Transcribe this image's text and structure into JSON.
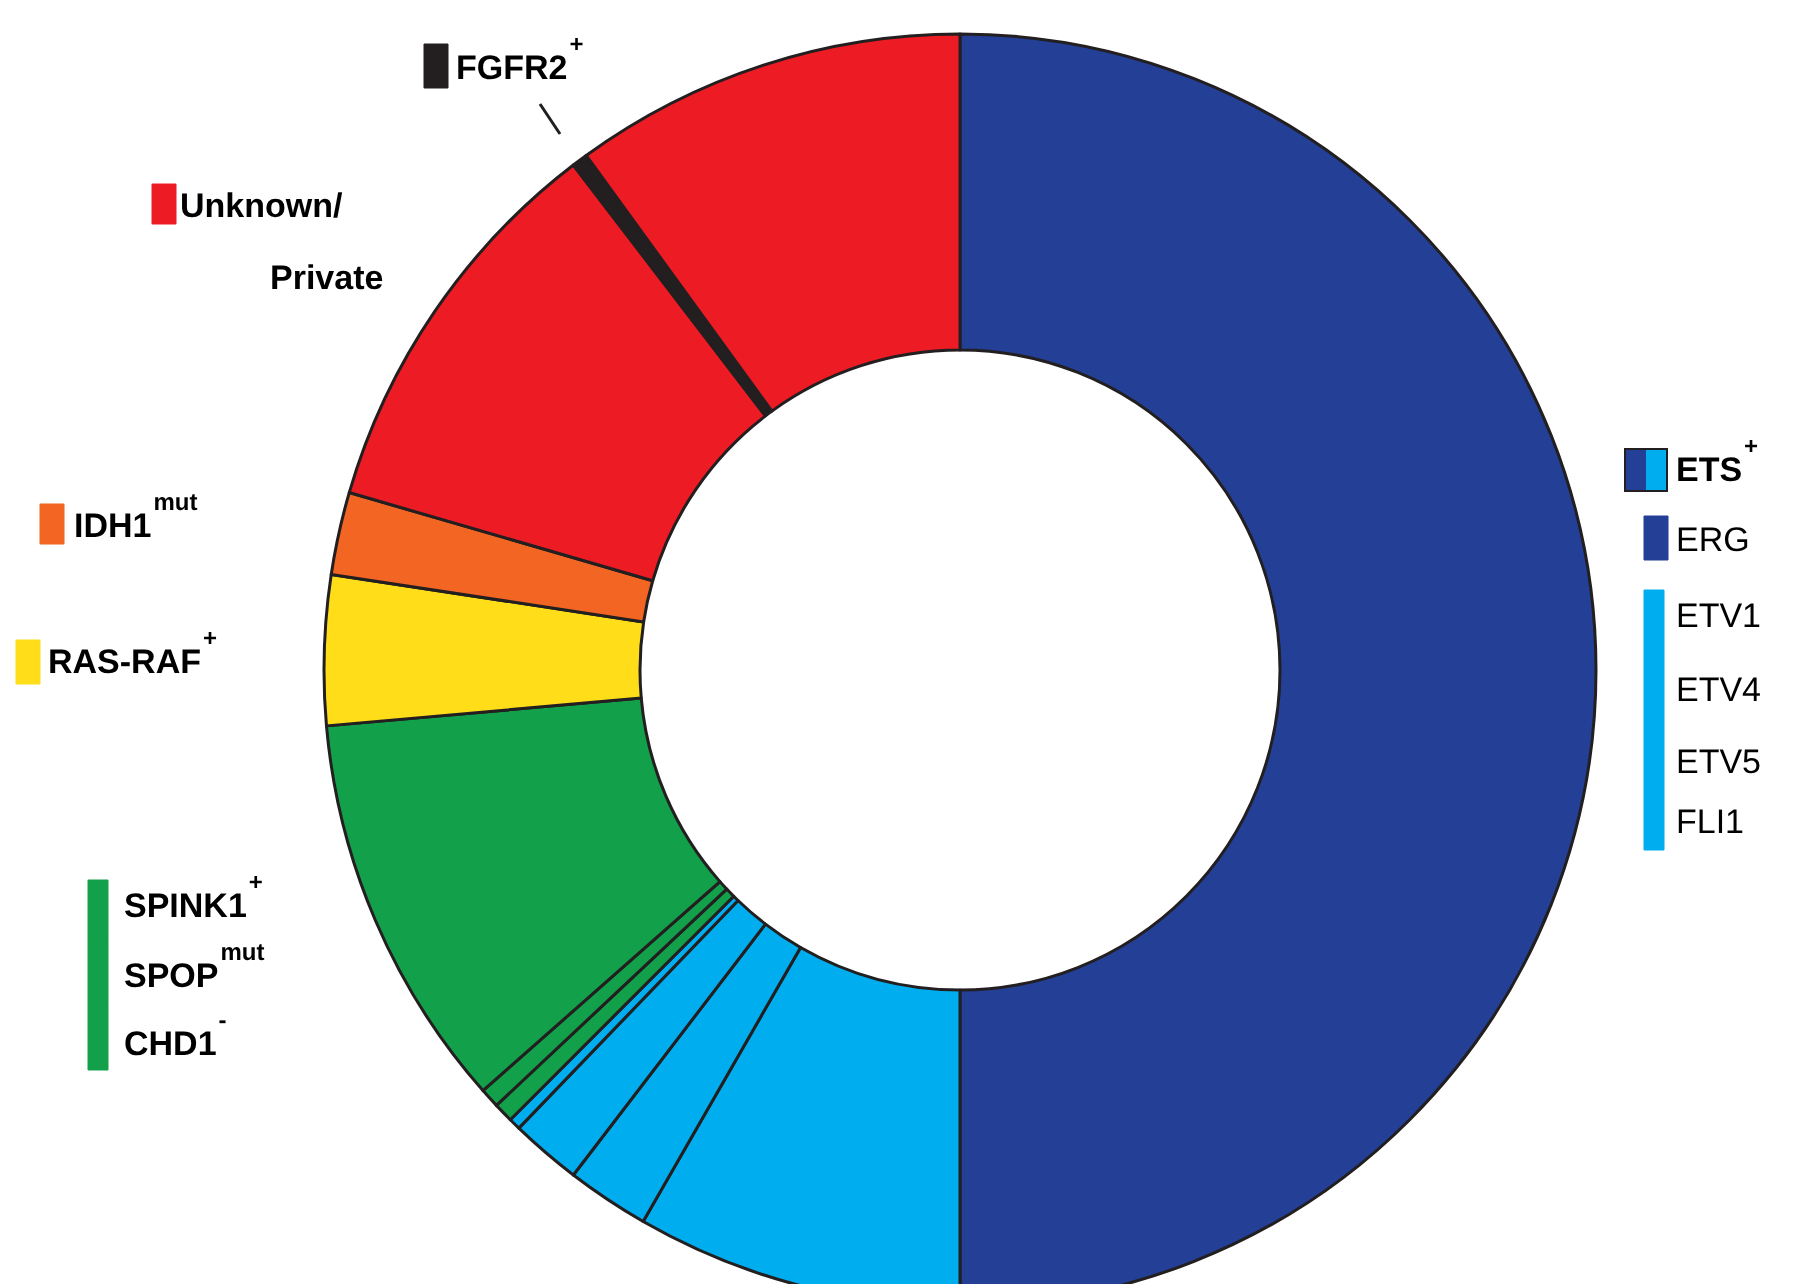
{
  "chart_data": {
    "type": "donut",
    "categories": [
      "ERG",
      "ETV1",
      "ETV4",
      "ETV5",
      "FLI1",
      "CHD1$^{-}$",
      "SPOP$^{mut}$",
      "SPINK1$^{+}$",
      "RAS-RAF$^{+}$",
      "IDH1$^{mut}$",
      "Unknown/\nPrivate",
      "FGFR2$^{+}$",
      null
    ],
    "values": [
      50,
      8.3,
      2.1,
      1.8,
      0.3,
      0.5,
      0.5,
      10.1,
      3.8,
      2.1,
      10.1,
      0.4,
      10.0
    ],
    "colors": [
      "#233f96",
      "#00aeef",
      "#00aeef",
      "#00aeef",
      "#00aeef",
      "#12a04a",
      "#12a04a",
      "#12a04a",
      "#ffdd19",
      "#f26522",
      "#ed1c24",
      "#231f20",
      "#ed1c24"
    ],
    "annotations": [
      "ETS$^{+}$"
    ],
    "legend": "left"
  }
}
